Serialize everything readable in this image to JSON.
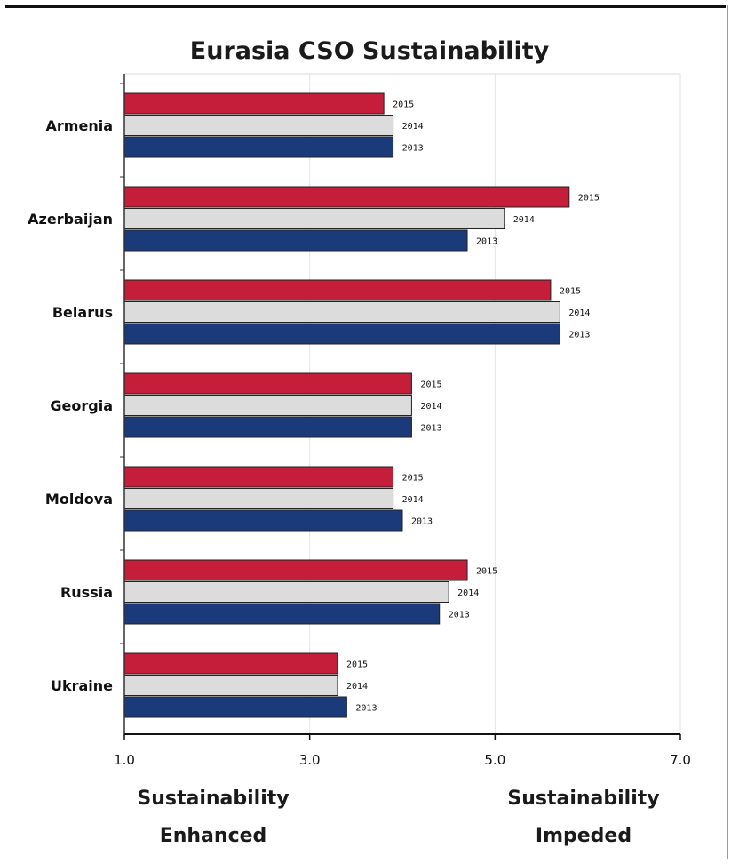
{
  "chart_data": {
    "type": "bar",
    "orientation": "horizontal",
    "title": "Eurasia CSO Sustainability",
    "categories": [
      "Armenia",
      "Azerbaijan",
      "Belarus",
      "Georgia",
      "Moldova",
      "Russia",
      "Ukraine"
    ],
    "series": [
      {
        "name": "2015",
        "color": "#c41e3a",
        "values": [
          3.8,
          5.8,
          5.6,
          4.1,
          3.9,
          4.7,
          3.3
        ]
      },
      {
        "name": "2014",
        "color": "#dcdcdc",
        "values": [
          3.9,
          5.1,
          5.7,
          4.1,
          3.9,
          4.5,
          3.3
        ]
      },
      {
        "name": "2013",
        "color": "#1a3a7a",
        "values": [
          3.9,
          4.7,
          5.7,
          4.1,
          4.0,
          4.4,
          3.4
        ]
      }
    ],
    "xlim": [
      1.0,
      7.0
    ],
    "xticks": [
      "1.0",
      "3.0",
      "5.0",
      "7.0"
    ],
    "grid": "vertical",
    "footer_left": [
      "Sustainability",
      "Enhanced"
    ],
    "footer_right": [
      "Sustainability",
      "Impeded"
    ]
  }
}
